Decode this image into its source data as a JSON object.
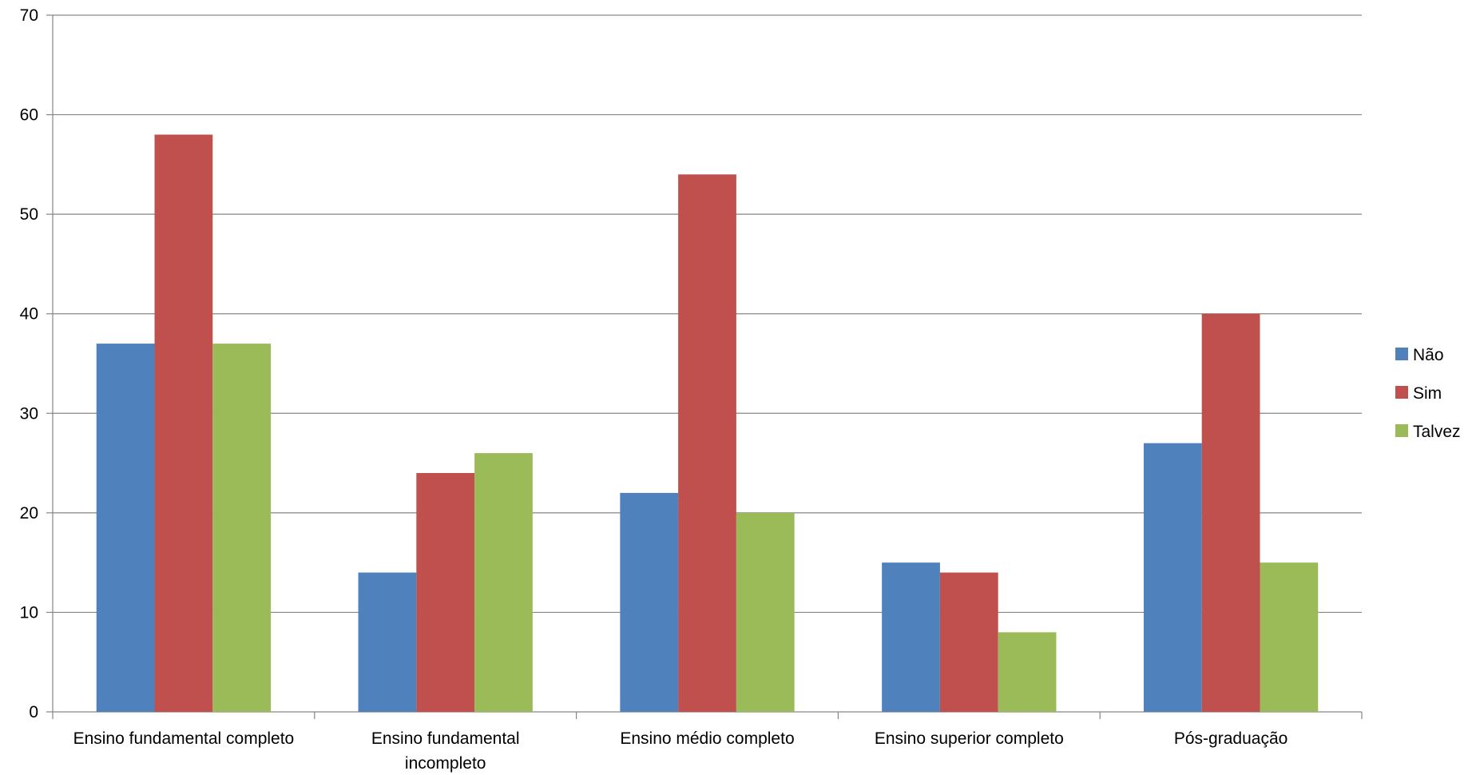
{
  "chart_data": {
    "type": "bar",
    "title": "",
    "xlabel": "",
    "ylabel": "",
    "ylim": [
      0,
      70
    ],
    "y_ticks": [
      0,
      10,
      20,
      30,
      40,
      50,
      60,
      70
    ],
    "grid": true,
    "legend_position": "right",
    "categories": [
      [
        "Ensino fundamental completo"
      ],
      [
        "Ensino fundamental",
        "incompleto"
      ],
      [
        "Ensino médio completo"
      ],
      [
        "Ensino superior completo"
      ],
      [
        "Pós-graduação"
      ]
    ],
    "series": [
      {
        "name": "Não",
        "color": "#4F81BD",
        "values": [
          37,
          14,
          22,
          15,
          27
        ]
      },
      {
        "name": "Sim",
        "color": "#C0504D",
        "values": [
          58,
          24,
          54,
          14,
          40
        ]
      },
      {
        "name": "Talvez",
        "color": "#9BBB59",
        "values": [
          37,
          26,
          20,
          8,
          15
        ]
      }
    ]
  }
}
